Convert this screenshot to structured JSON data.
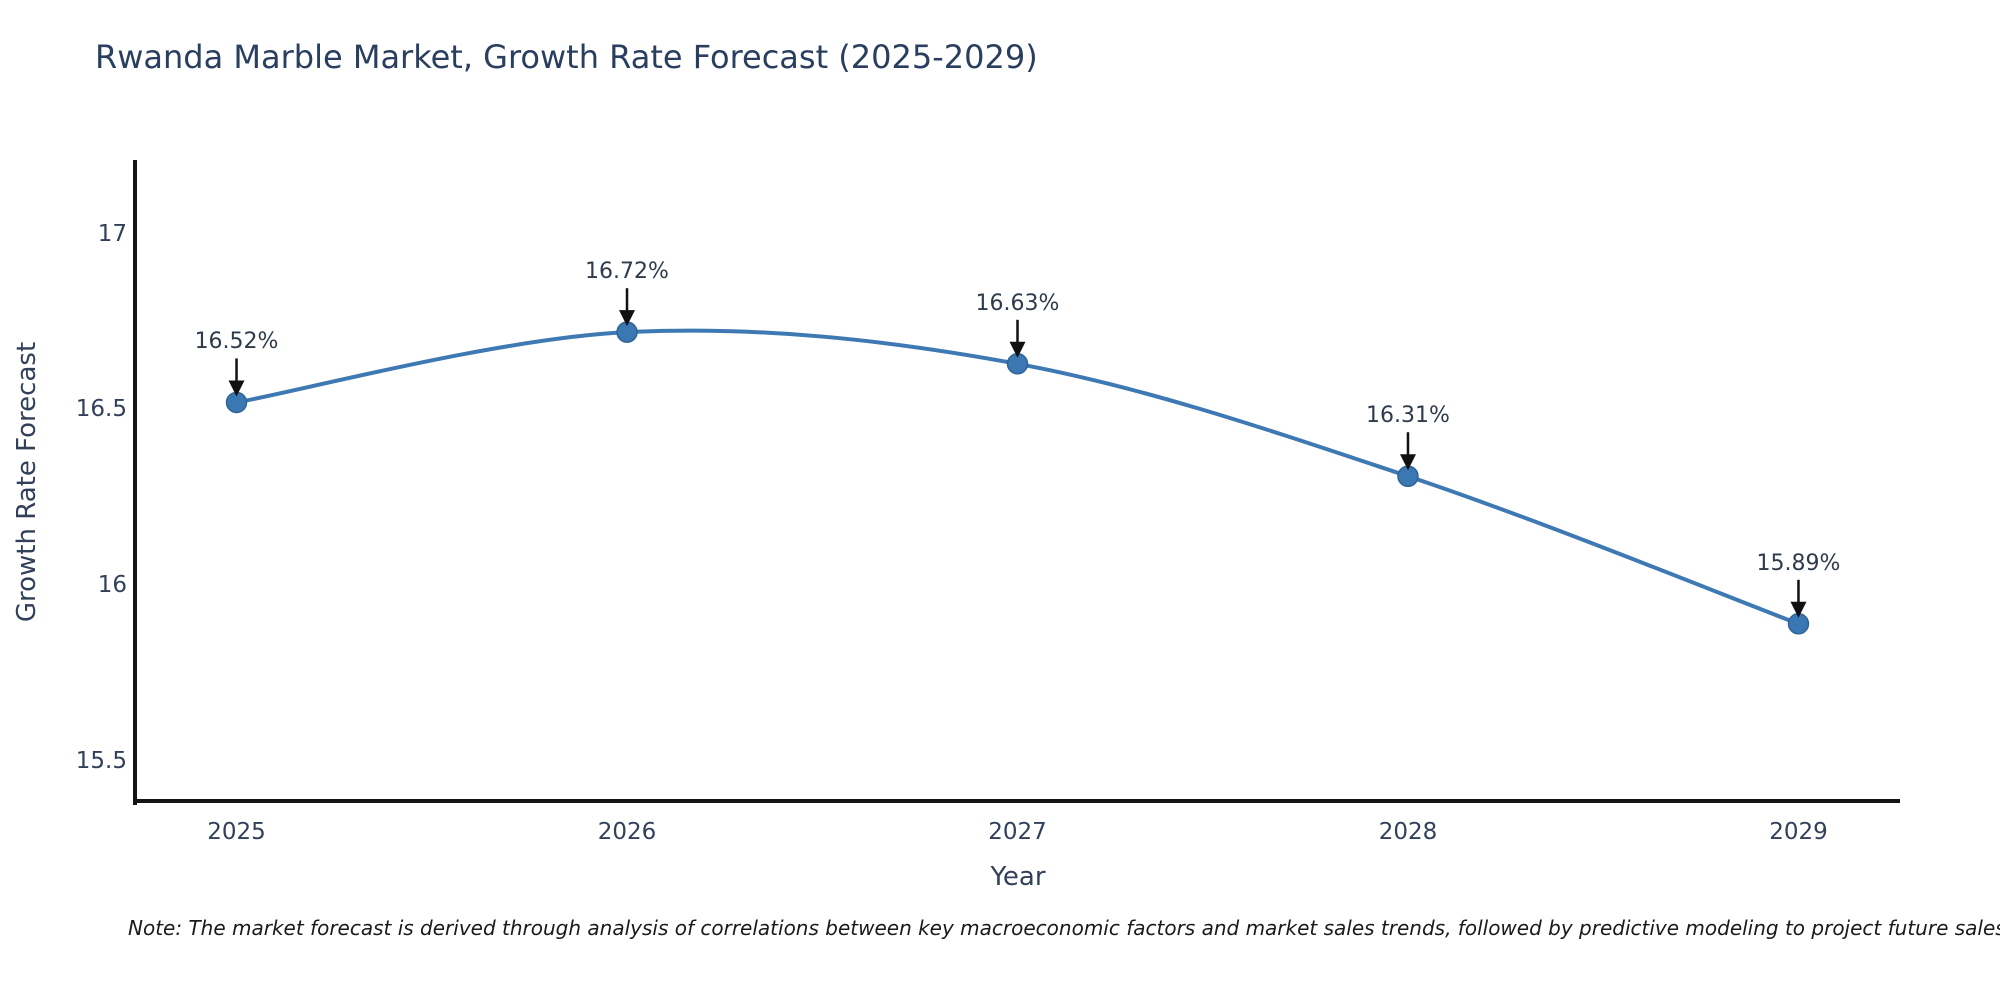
{
  "title": "Rwanda Marble Market, Growth Rate Forecast (2025-2029)",
  "note": "Note: The market forecast is derived through analysis of correlations between key macroeconomic factors and market sales trends, followed by predictive modeling to project future sales",
  "chart_data": {
    "type": "line",
    "title": "Rwanda Marble Market, Growth Rate Forecast (2025-2029)",
    "xlabel": "Year",
    "ylabel": "Growth Rate Forecast",
    "x": [
      2025,
      2026,
      2027,
      2028,
      2029
    ],
    "xtick_labels": [
      "2025",
      "2026",
      "2027",
      "2028",
      "2029"
    ],
    "series": [
      {
        "name": "Growth Rate Forecast",
        "values": [
          16.52,
          16.72,
          16.63,
          16.31,
          15.89
        ]
      }
    ],
    "point_labels": [
      "16.52%",
      "16.72%",
      "16.63%",
      "16.31%",
      "15.89%"
    ],
    "yticks": [
      15.5,
      16,
      16.5,
      17
    ],
    "ytick_labels": [
      "15.5",
      "16",
      "16.5",
      "17"
    ],
    "ylim": [
      15.38,
      17.21
    ],
    "xlim": [
      2024.74,
      2029.26
    ],
    "grid": false,
    "legend_position": "none",
    "line_shape": "spline",
    "marker": "circle",
    "annotation_style": "value label with black down-arrow pointing at each data point"
  },
  "colors": {
    "title_text": "#2a3f5f",
    "tick_text": "#32405a",
    "annotation_text": "#2f3b4a",
    "line": "#3e79b4",
    "marker_fill": "#3b77b3",
    "marker_edge": "#2e6396",
    "axis_spine": "#141414",
    "arrow": "#111111",
    "note_text": "#1a1a1a",
    "background": "#ffffff"
  }
}
